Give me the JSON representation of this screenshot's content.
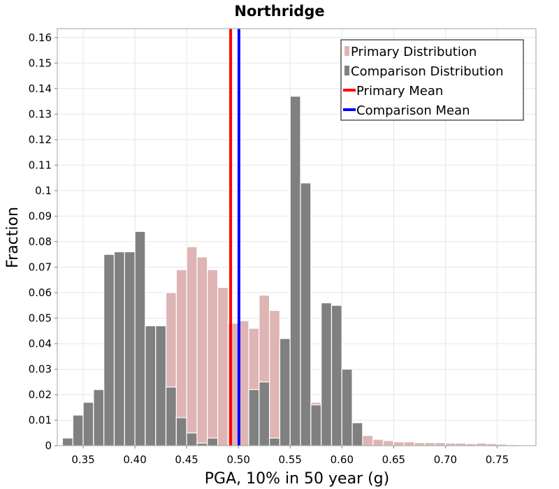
{
  "chart_data": {
    "type": "bar",
    "title": "Northridge",
    "xlabel": "PGA, 10% in 50 year (g)",
    "ylabel": "Fraction",
    "xlim": [
      0.325,
      0.7875
    ],
    "ylim": [
      0,
      0.1635
    ],
    "bin_width": 0.01,
    "grid": true,
    "legend_position": "top-right",
    "x_ticks": [
      "0.35",
      "0.40",
      "0.45",
      "0.50",
      "0.55",
      "0.60",
      "0.65",
      "0.70",
      "0.75"
    ],
    "y_ticks": [
      "0",
      "0.01",
      "0.02",
      "0.03",
      "0.04",
      "0.05",
      "0.06",
      "0.07",
      "0.08",
      "0.09",
      "0.1",
      "0.11",
      "0.12",
      "0.13",
      "0.14",
      "0.15",
      "0.16"
    ],
    "series": [
      {
        "name": "Primary Distribution",
        "kind": "histogram",
        "color": "#deb4b4",
        "x": [
          0.345,
          0.355,
          0.365,
          0.375,
          0.385,
          0.395,
          0.405,
          0.415,
          0.425,
          0.435,
          0.445,
          0.455,
          0.465,
          0.475,
          0.485,
          0.495,
          0.505,
          0.515,
          0.525,
          0.535,
          0.545,
          0.555,
          0.565,
          0.575,
          0.585,
          0.595,
          0.605,
          0.615,
          0.625,
          0.635,
          0.645,
          0.655,
          0.665,
          0.675,
          0.685,
          0.695,
          0.705,
          0.715,
          0.725,
          0.735,
          0.745,
          0.755,
          0.765,
          0.775
        ],
        "values": [
          0,
          0,
          0,
          0,
          0,
          0,
          0,
          0.003,
          0.047,
          0.06,
          0.069,
          0.078,
          0.074,
          0.069,
          0.062,
          0.048,
          0.049,
          0.046,
          0.059,
          0.053,
          0.034,
          0.016,
          0.011,
          0.017,
          0.014,
          0.01,
          0.005,
          0.004,
          0.004,
          0.0025,
          0.002,
          0.0015,
          0.0015,
          0.0012,
          0.0012,
          0.0012,
          0.001,
          0.001,
          0.0008,
          0.001,
          0.0008,
          0.0006,
          0.0004,
          0.0002
        ]
      },
      {
        "name": "Comparison Distribution",
        "kind": "histogram",
        "color": "#808080",
        "x": [
          0.335,
          0.345,
          0.355,
          0.365,
          0.375,
          0.385,
          0.395,
          0.405,
          0.415,
          0.425,
          0.435,
          0.445,
          0.455,
          0.465,
          0.475,
          0.485,
          0.495,
          0.505,
          0.515,
          0.525,
          0.535,
          0.545,
          0.555,
          0.565,
          0.575,
          0.585,
          0.595,
          0.605,
          0.615
        ],
        "values": [
          0.003,
          0.012,
          0.017,
          0.022,
          0.075,
          0.076,
          0.076,
          0.084,
          0.047,
          0.047,
          0.023,
          0.011,
          0.005,
          0.001,
          0.003,
          0,
          0,
          0,
          0.022,
          0.025,
          0.003,
          0.042,
          0.137,
          0.103,
          0.016,
          0.056,
          0.055,
          0.03,
          0.009
        ]
      },
      {
        "name": "Primary Mean",
        "kind": "vline",
        "color": "#ff0000",
        "x": 0.4925
      },
      {
        "name": "Comparison Mean",
        "kind": "vline",
        "color": "#0000ff",
        "x": 0.5005
      }
    ]
  }
}
